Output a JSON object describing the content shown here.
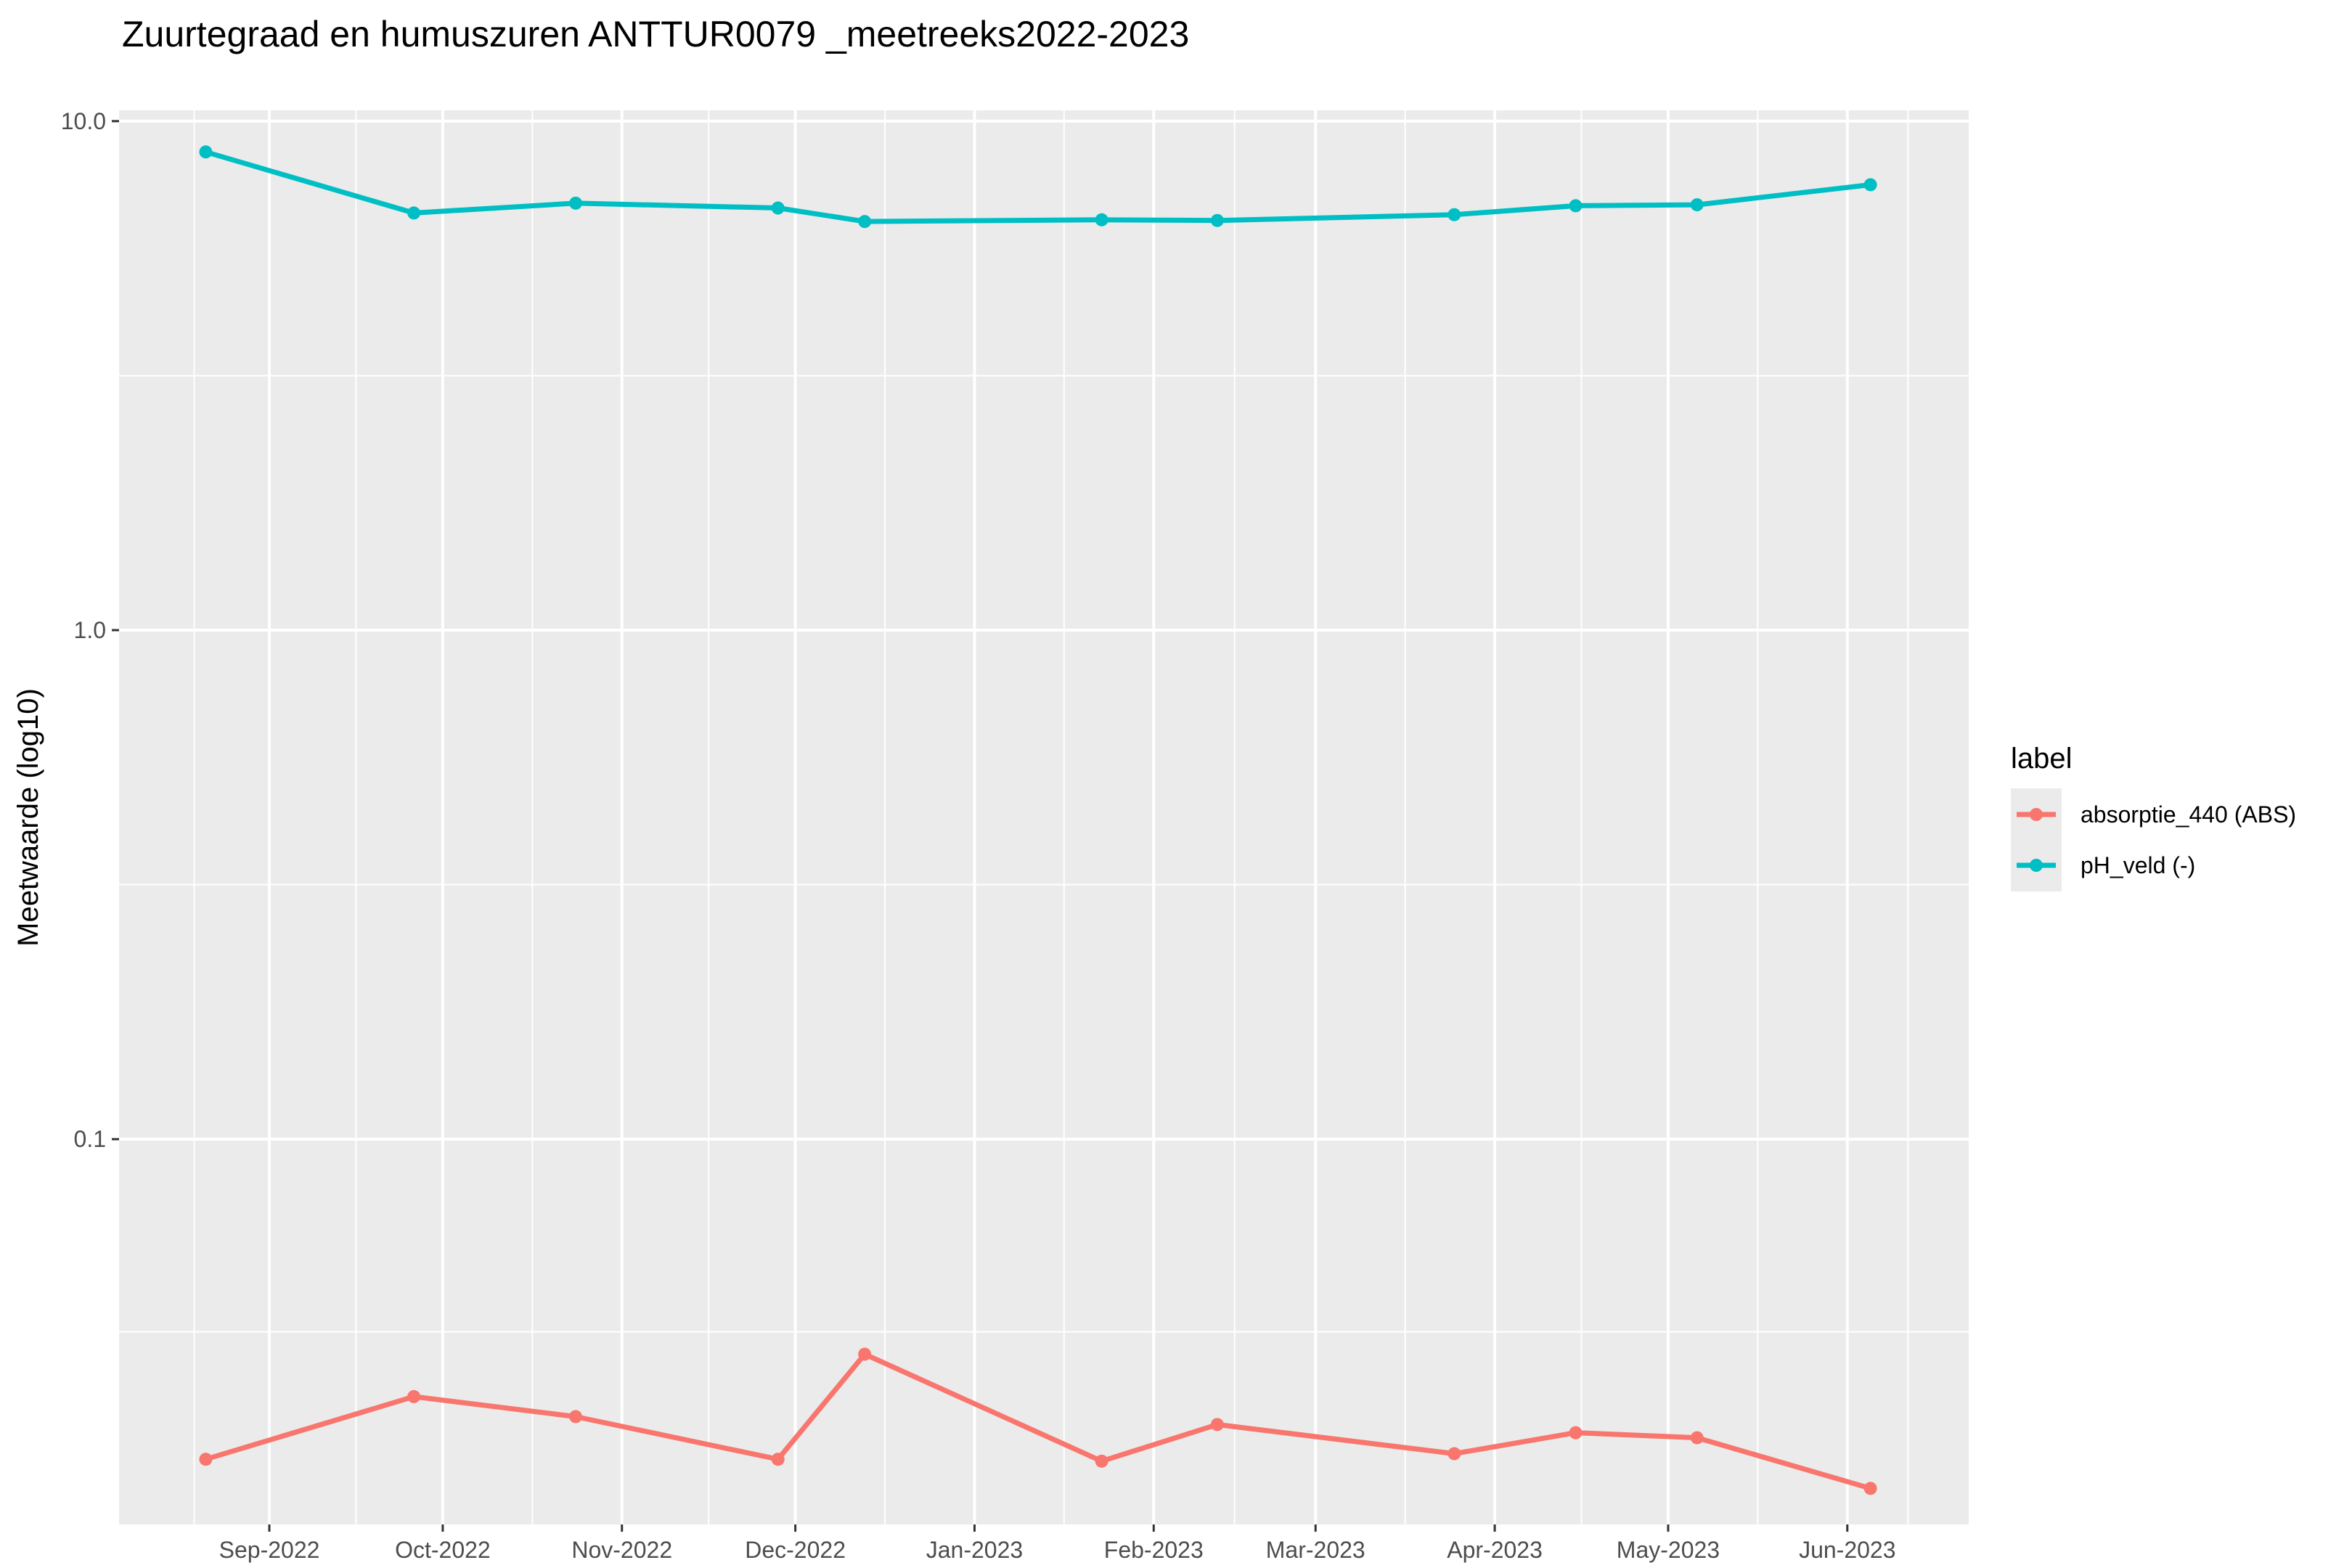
{
  "chart_data": {
    "type": "line",
    "title": "Zuurtegraad en humuszuren ANTTUR0079 _meetreeks2022-2023",
    "xlabel": "",
    "ylabel": "Meetwaarde (log10)",
    "y_scale": "log10",
    "ylim": [
      0.0175,
      10.5
    ],
    "y_ticks": [
      0.1,
      1.0,
      10.0
    ],
    "y_tick_labels": [
      "0.1",
      "1.0",
      "10.0"
    ],
    "xlim": [
      "2022-08-06",
      "2023-06-22"
    ],
    "x_ticks": [
      "2022-09-01",
      "2022-10-01",
      "2022-11-01",
      "2022-12-01",
      "2023-01-01",
      "2023-02-01",
      "2023-03-01",
      "2023-04-01",
      "2023-05-01",
      "2023-06-01"
    ],
    "x_tick_labels": [
      "Sep-2022",
      "Oct-2022",
      "Nov-2022",
      "Dec-2022",
      "Jan-2023",
      "Feb-2023",
      "Mar-2023",
      "Apr-2023",
      "May-2023",
      "Jun-2023"
    ],
    "grid": true,
    "legend": {
      "title": "label",
      "position": "right"
    },
    "series": [
      {
        "name": "absorptie_440 (ABS)",
        "color": "#F8766D",
        "x": [
          "2022-08-21",
          "2022-09-26",
          "2022-10-24",
          "2022-11-28",
          "2022-12-13",
          "2023-01-23",
          "2023-02-12",
          "2023-03-25",
          "2023-04-15",
          "2023-05-06",
          "2023-06-05"
        ],
        "y": [
          0.0235,
          0.0312,
          0.0285,
          0.0235,
          0.0378,
          0.0233,
          0.0275,
          0.0241,
          0.0265,
          0.0259,
          0.0206
        ]
      },
      {
        "name": "pH_veld (-)",
        "color": "#00BFC4",
        "x": [
          "2022-08-21",
          "2022-09-26",
          "2022-10-24",
          "2022-11-28",
          "2022-12-13",
          "2023-01-23",
          "2023-02-12",
          "2023-03-25",
          "2023-04-15",
          "2023-05-06",
          "2023-06-05"
        ],
        "y": [
          8.7,
          6.6,
          6.9,
          6.75,
          6.35,
          6.4,
          6.38,
          6.55,
          6.82,
          6.85,
          7.5
        ]
      }
    ]
  }
}
